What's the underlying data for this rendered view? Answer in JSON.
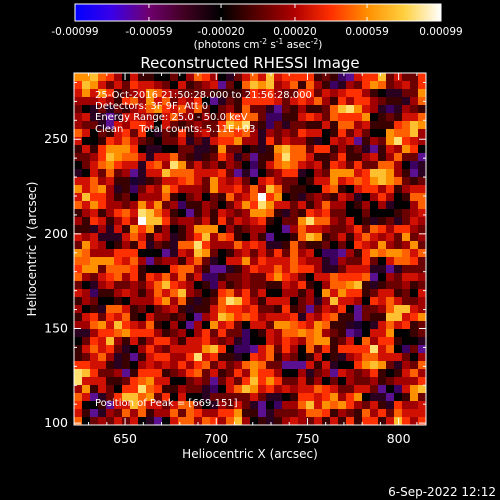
{
  "chart_data": {
    "type": "heatmap",
    "title": "Reconstructed RHESSI Image",
    "xlabel": "Heliocentric X (arcsec)",
    "ylabel": "Heliocentric Y (arcsec)",
    "xlim": [
      622,
      815
    ],
    "ylim": [
      99,
      285
    ],
    "x_ticks": [
      "650",
      "700",
      "750",
      "800"
    ],
    "x_tick_values": [
      650,
      700,
      750,
      800
    ],
    "y_ticks": [
      "100",
      "150",
      "200",
      "250"
    ],
    "y_tick_values": [
      100,
      150,
      200,
      250
    ],
    "colorbar": {
      "range": [
        -0.00099,
        0.00099
      ],
      "tick_labels": [
        "-0.00099",
        "-0.00059",
        "-0.00020",
        "0.00020",
        "0.00059",
        "0.00099"
      ],
      "units_prefix": "(photons cm",
      "units_exp1": "-2",
      "units_mid": " s",
      "units_exp2": "-1",
      "units_mid2": " asec",
      "units_exp3": "-2",
      "units_suffix": ")",
      "colors": [
        "#0000ff",
        "#3a00e8",
        "#700070",
        "#400020",
        "#000000",
        "#5a0000",
        "#b00000",
        "#ff3000",
        "#ff9000",
        "#ffd040",
        "#ffffff"
      ]
    },
    "annotations": [
      "25-Oct-2016 21:50:28.000 to 21:56:28.000",
      "Detectors: 3F 9F, Att 0",
      "Energy Range: 25.0 - 50.0 keV",
      "Clean     Total counts: 5.11E+03"
    ],
    "peak_label": "Position of Peak = [669,151]",
    "peak_position": [
      669,
      151
    ],
    "grid": false
  },
  "footer": {
    "date": "6-Sep-2022 12:12"
  }
}
